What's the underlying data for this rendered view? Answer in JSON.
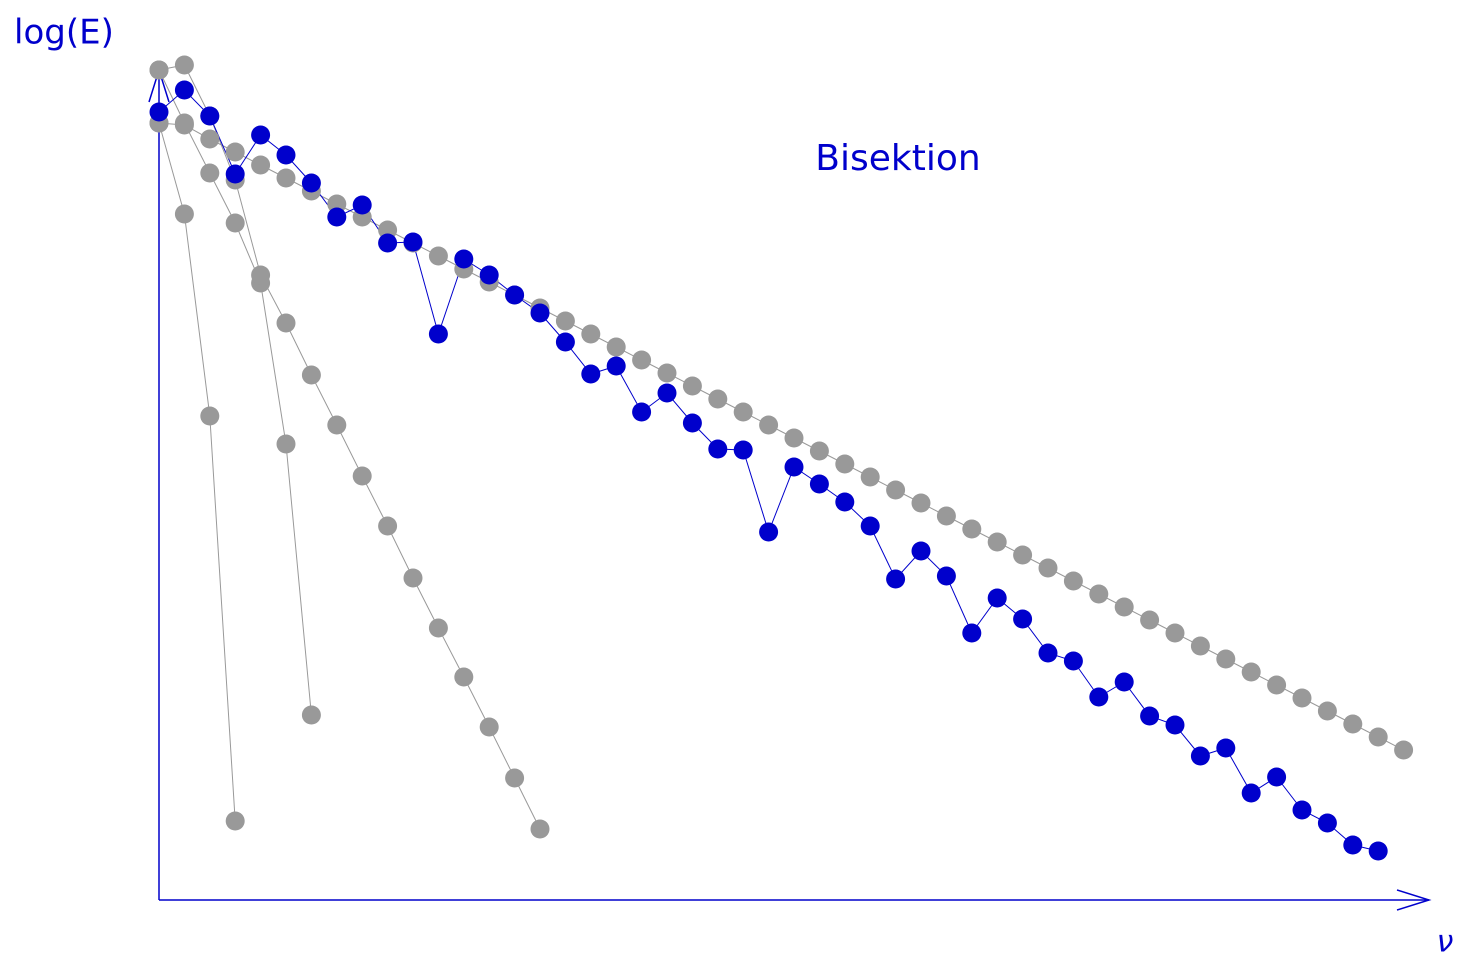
{
  "chart_data": {
    "type": "line",
    "y_label": "log(E)",
    "x_label": "ν",
    "annotation": "Bisektion",
    "xlim": [
      0,
      50
    ],
    "ylim": [
      0,
      83
    ],
    "x": [
      0,
      1,
      2,
      3,
      4,
      5,
      6,
      7,
      8,
      9,
      10,
      11,
      12,
      13,
      14,
      15,
      16,
      17,
      18,
      19,
      20,
      21,
      22,
      23,
      24,
      25,
      26,
      27,
      28,
      29,
      30,
      31,
      32,
      33,
      34,
      35,
      36,
      37,
      38,
      39,
      40,
      41,
      42,
      43,
      44,
      45,
      46,
      47,
      48,
      49
    ],
    "series": [
      {
        "color": "#999999",
        "values": [
          77.7,
          77.5,
          76.1,
          74.8,
          73.5,
          72.2,
          70.9,
          69.6,
          68.3,
          67.0,
          65.7,
          64.4,
          63.1,
          61.8,
          60.5,
          59.2,
          57.9,
          56.6,
          55.3,
          54.0,
          52.7,
          51.4,
          50.1,
          48.8,
          47.5,
          46.2,
          44.9,
          43.6,
          42.3,
          41.0,
          39.7,
          38.4,
          37.1,
          35.8,
          34.5,
          33.2,
          31.9,
          30.6,
          29.3,
          28.0,
          26.7,
          25.4,
          24.1,
          22.8,
          21.5,
          20.2,
          18.9,
          17.6,
          16.3,
          15.0
        ]
      },
      {
        "color": "#999999",
        "values": [
          77.7,
          68.6,
          48.4,
          7.9,
          null,
          null,
          null,
          null,
          null,
          null,
          null,
          null,
          null,
          null,
          null,
          null,
          null,
          null,
          null,
          null,
          null,
          null,
          null,
          null,
          null,
          null,
          null,
          null,
          null,
          null,
          null,
          null,
          null,
          null,
          null,
          null,
          null,
          null,
          null,
          null,
          null,
          null,
          null,
          null,
          null,
          null,
          null,
          null,
          null,
          null
        ]
      },
      {
        "color": "#999999",
        "values": [
          83.0,
          77.7,
          72.7,
          67.7,
          61.7,
          45.6,
          18.5,
          null,
          null,
          null,
          null,
          null,
          null,
          null,
          null,
          null,
          null,
          null,
          null,
          null,
          null,
          null,
          null,
          null,
          null,
          null,
          null,
          null,
          null,
          null,
          null,
          null,
          null,
          null,
          null,
          null,
          null,
          null,
          null,
          null,
          null,
          null,
          null,
          null,
          null,
          null,
          null,
          null,
          null,
          null
        ]
      },
      {
        "color": "#999999",
        "values": [
          83.0,
          83.5,
          78.4,
          72.0,
          62.5,
          57.7,
          52.5,
          47.5,
          42.4,
          37.4,
          32.2,
          27.2,
          22.3,
          17.3,
          12.2,
          7.1,
          null,
          null,
          null,
          null,
          null,
          null,
          null,
          null,
          null,
          null,
          null,
          null,
          null,
          null,
          null,
          null,
          null,
          null,
          null,
          null,
          null,
          null,
          null,
          null,
          null,
          null,
          null,
          null,
          null,
          null,
          null,
          null,
          null,
          null
        ]
      },
      {
        "color": "#0000cc",
        "values": [
          78.8,
          81.0,
          78.4,
          72.6,
          76.5,
          74.5,
          71.7,
          68.3,
          69.5,
          65.7,
          65.8,
          56.6,
          64.1,
          62.5,
          60.5,
          58.7,
          55.8,
          52.6,
          53.4,
          48.8,
          50.7,
          47.7,
          45.1,
          45.0,
          36.8,
          43.3,
          41.6,
          39.8,
          37.4,
          32.1,
          34.9,
          32.4,
          26.7,
          30.2,
          28.1,
          24.7,
          23.9,
          20.3,
          21.8,
          18.4,
          17.5,
          14.4,
          15.2,
          10.7,
          12.3,
          9.0,
          7.7,
          5.5,
          4.9,
          null
        ]
      }
    ]
  }
}
